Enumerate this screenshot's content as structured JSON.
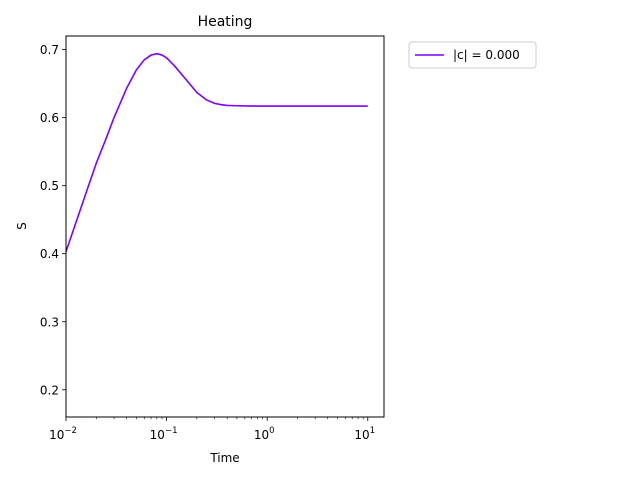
{
  "chart_data": {
    "type": "line",
    "title": "Heating",
    "xlabel": "Time",
    "ylabel": "S",
    "xscale": "log",
    "xlim": [
      0.01,
      14.5
    ],
    "ylim": [
      0.16,
      0.72
    ],
    "x_ticks": [
      {
        "value": 0.01,
        "base": "10",
        "exp": "−2"
      },
      {
        "value": 0.1,
        "base": "10",
        "exp": "−1"
      },
      {
        "value": 1,
        "base": "10",
        "exp": "0"
      },
      {
        "value": 10,
        "base": "10",
        "exp": "1"
      }
    ],
    "y_ticks": [
      0.2,
      0.3,
      0.4,
      0.5,
      0.6,
      0.7
    ],
    "grid": false,
    "legend_position": "outside-top-right",
    "series": [
      {
        "name": "|c| = 0.000",
        "color": "#7f00ff",
        "x": [
          0.01,
          0.0158,
          0.02,
          0.025,
          0.03,
          0.04,
          0.05,
          0.06,
          0.07,
          0.08,
          0.09,
          0.1,
          0.12,
          0.15,
          0.2,
          0.25,
          0.3,
          0.35,
          0.4,
          0.5,
          0.6,
          0.8,
          1,
          2,
          5,
          10
        ],
        "y": [
          0.403,
          0.489,
          0.533,
          0.569,
          0.6,
          0.643,
          0.67,
          0.685,
          0.692,
          0.694,
          0.692,
          0.688,
          0.676,
          0.659,
          0.637,
          0.626,
          0.621,
          0.619,
          0.618,
          0.6175,
          0.6172,
          0.617,
          0.617,
          0.617,
          0.617,
          0.617
        ]
      }
    ]
  }
}
